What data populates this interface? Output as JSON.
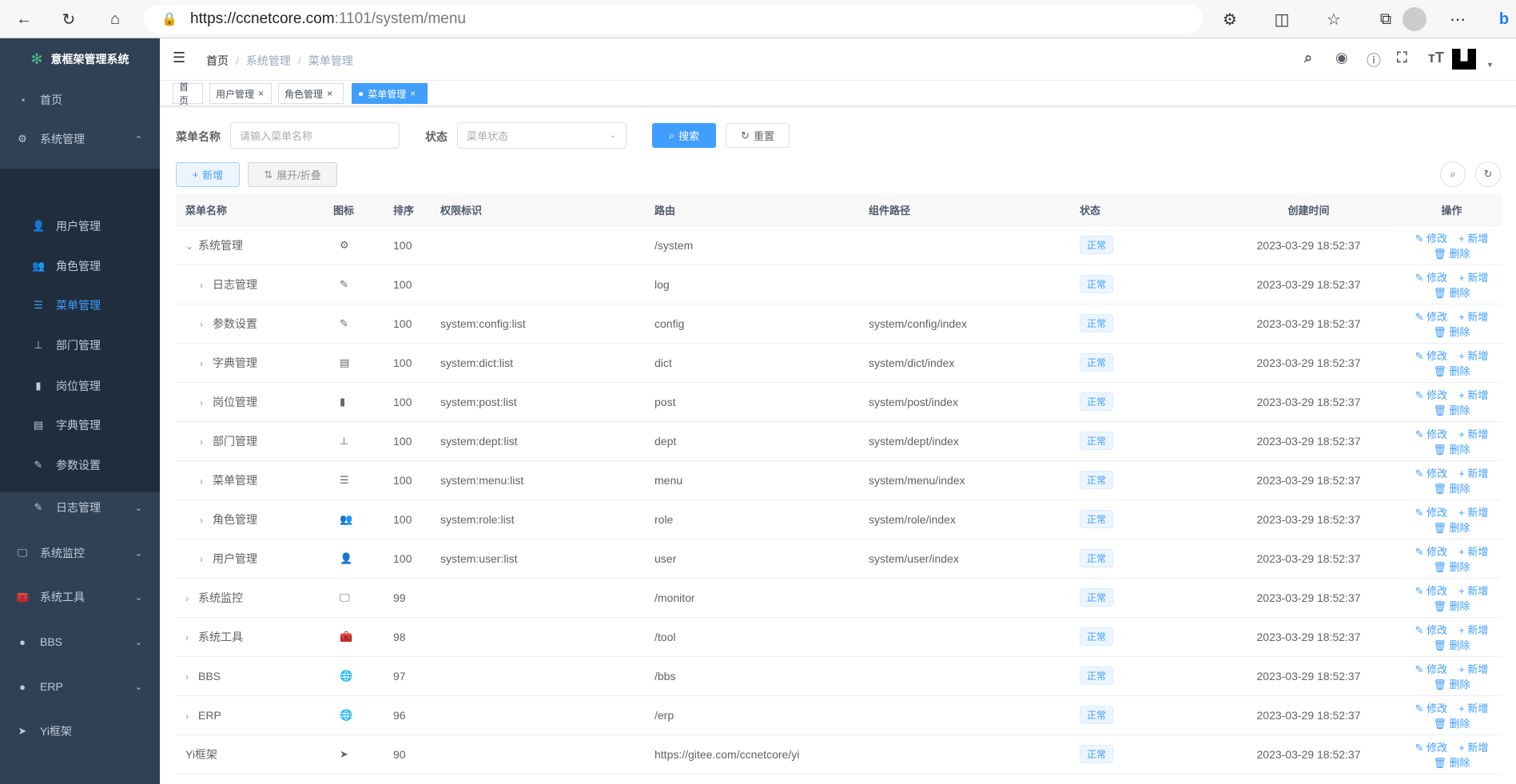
{
  "browser": {
    "url_host": "https://ccnetcore.com",
    "url_path": ":1101/system/menu"
  },
  "sidebar": {
    "title": "意框架管理系统",
    "items": [
      {
        "label": "首页",
        "icon": "dashboard-icon"
      },
      {
        "label": "系统管理",
        "icon": "gear-icon",
        "expanded": true
      },
      {
        "label": "用户管理",
        "icon": "user-icon"
      },
      {
        "label": "角色管理",
        "icon": "peoples-icon"
      },
      {
        "label": "菜单管理",
        "icon": "tree-table-icon",
        "active": true
      },
      {
        "label": "部门管理",
        "icon": "tree-icon"
      },
      {
        "label": "岗位管理",
        "icon": "post-icon"
      },
      {
        "label": "字典管理",
        "icon": "dict-icon"
      },
      {
        "label": "参数设置",
        "icon": "edit-icon"
      },
      {
        "label": "日志管理",
        "icon": "log-icon"
      },
      {
        "label": "系统监控",
        "icon": "monitor-icon"
      },
      {
        "label": "系统工具",
        "icon": "tool-icon"
      },
      {
        "label": "BBS",
        "icon": "globe-icon"
      },
      {
        "label": "ERP",
        "icon": "globe-icon"
      },
      {
        "label": "Yi框架",
        "icon": "send-icon"
      }
    ]
  },
  "breadcrumb": [
    "首页",
    "系统管理",
    "菜单管理"
  ],
  "tags": [
    {
      "label": "首页"
    },
    {
      "label": "用户管理"
    },
    {
      "label": "角色管理"
    },
    {
      "label": "菜单管理",
      "active": true
    }
  ],
  "search": {
    "name_label": "菜单名称",
    "name_placeholder": "请输入菜单名称",
    "status_label": "状态",
    "status_placeholder": "菜单状态",
    "search_btn": "搜索",
    "reset_btn": "重置"
  },
  "toolbar": {
    "add": "新增",
    "toggle": "展开/折叠"
  },
  "table": {
    "headers": [
      "菜单名称",
      "图标",
      "排序",
      "权限标识",
      "路由",
      "组件路径",
      "状态",
      "创建时间",
      "操作"
    ],
    "ops": [
      "修改",
      "新增",
      "删除"
    ],
    "rows": [
      {
        "name": "系统管理",
        "level": 0,
        "arrow": "down",
        "icon": "⚙",
        "sort": "100",
        "perm": "",
        "route": "/system",
        "comp": "",
        "status": "正常",
        "time": "2023-03-29 18:52:37"
      },
      {
        "name": "日志管理",
        "level": 1,
        "arrow": "right",
        "icon": "✎",
        "sort": "100",
        "perm": "",
        "route": "log",
        "comp": "",
        "status": "正常",
        "time": "2023-03-29 18:52:37"
      },
      {
        "name": "参数设置",
        "level": 1,
        "arrow": "right",
        "icon": "✎",
        "sort": "100",
        "perm": "system:config:list",
        "route": "config",
        "comp": "system/config/index",
        "status": "正常",
        "time": "2023-03-29 18:52:37"
      },
      {
        "name": "字典管理",
        "level": 1,
        "arrow": "right",
        "icon": "▤",
        "sort": "100",
        "perm": "system:dict:list",
        "route": "dict",
        "comp": "system/dict/index",
        "status": "正常",
        "time": "2023-03-29 18:52:37"
      },
      {
        "name": "岗位管理",
        "level": 1,
        "arrow": "right",
        "icon": "▮",
        "sort": "100",
        "perm": "system:post:list",
        "route": "post",
        "comp": "system/post/index",
        "status": "正常",
        "time": "2023-03-29 18:52:37"
      },
      {
        "name": "部门管理",
        "level": 1,
        "arrow": "right",
        "icon": "⊥",
        "sort": "100",
        "perm": "system:dept:list",
        "route": "dept",
        "comp": "system/dept/index",
        "status": "正常",
        "time": "2023-03-29 18:52:37"
      },
      {
        "name": "菜单管理",
        "level": 1,
        "arrow": "right",
        "icon": "☰",
        "sort": "100",
        "perm": "system:menu:list",
        "route": "menu",
        "comp": "system/menu/index",
        "status": "正常",
        "time": "2023-03-29 18:52:37"
      },
      {
        "name": "角色管理",
        "level": 1,
        "arrow": "right",
        "icon": "👥",
        "sort": "100",
        "perm": "system:role:list",
        "route": "role",
        "comp": "system/role/index",
        "status": "正常",
        "time": "2023-03-29 18:52:37"
      },
      {
        "name": "用户管理",
        "level": 1,
        "arrow": "right",
        "icon": "👤",
        "sort": "100",
        "perm": "system:user:list",
        "route": "user",
        "comp": "system/user/index",
        "status": "正常",
        "time": "2023-03-29 18:52:37"
      },
      {
        "name": "系统监控",
        "level": 0,
        "arrow": "right",
        "icon": "🖵",
        "sort": "99",
        "perm": "",
        "route": "/monitor",
        "comp": "",
        "status": "正常",
        "time": "2023-03-29 18:52:37"
      },
      {
        "name": "系统工具",
        "level": 0,
        "arrow": "right",
        "icon": "🧰",
        "sort": "98",
        "perm": "",
        "route": "/tool",
        "comp": "",
        "status": "正常",
        "time": "2023-03-29 18:52:37"
      },
      {
        "name": "BBS",
        "level": 0,
        "arrow": "right",
        "icon": "🌐",
        "sort": "97",
        "perm": "",
        "route": "/bbs",
        "comp": "",
        "status": "正常",
        "time": "2023-03-29 18:52:37"
      },
      {
        "name": "ERP",
        "level": 0,
        "arrow": "right",
        "icon": "🌐",
        "sort": "96",
        "perm": "",
        "route": "/erp",
        "comp": "",
        "status": "正常",
        "time": "2023-03-29 18:52:37"
      },
      {
        "name": "Yi框架",
        "level": 0,
        "arrow": "",
        "icon": "➤",
        "sort": "90",
        "perm": "",
        "route": "https://gitee.com/ccnetcore/yi",
        "comp": "",
        "status": "正常",
        "time": "2023-03-29 18:52:37"
      }
    ]
  },
  "colors": {
    "sidebar": "#304156",
    "submenu": "#1f2d3d",
    "primary": "#409eff"
  }
}
